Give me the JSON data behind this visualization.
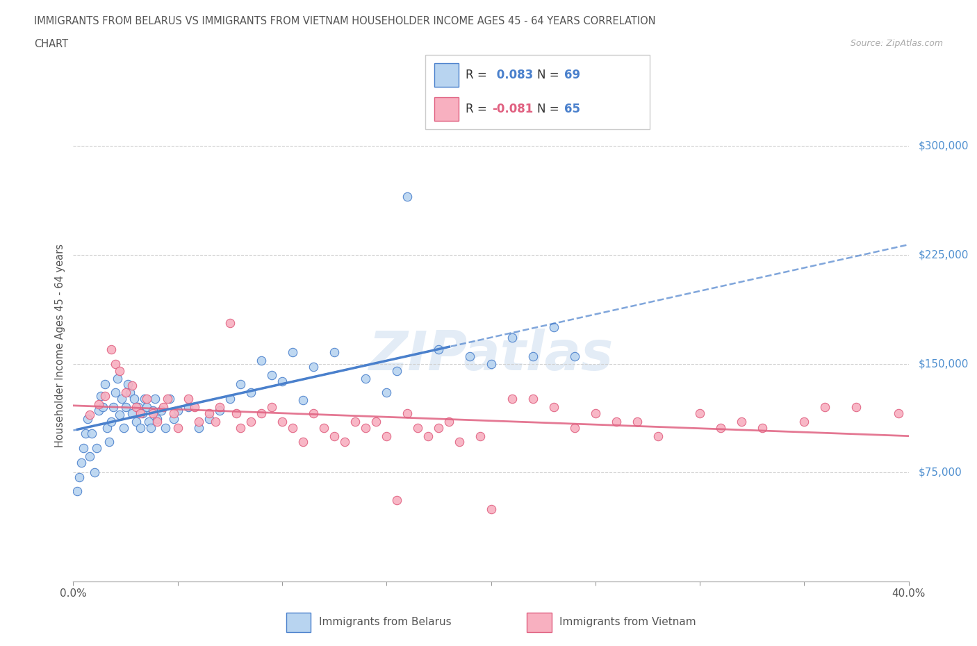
{
  "title_line1": "IMMIGRANTS FROM BELARUS VS IMMIGRANTS FROM VIETNAM HOUSEHOLDER INCOME AGES 45 - 64 YEARS CORRELATION",
  "title_line2": "CHART",
  "source": "Source: ZipAtlas.com",
  "ylabel": "Householder Income Ages 45 - 64 years",
  "xmin": 0.0,
  "xmax": 0.4,
  "ymin": 0,
  "ymax": 325000,
  "yticks": [
    0,
    75000,
    150000,
    225000,
    300000
  ],
  "ytick_labels": [
    "",
    "$75,000",
    "$150,000",
    "$225,000",
    "$300,000"
  ],
  "xticks": [
    0.0,
    0.05,
    0.1,
    0.15,
    0.2,
    0.25,
    0.3,
    0.35,
    0.4
  ],
  "belarus_color": "#b8d4f0",
  "vietnam_color": "#f8b0c0",
  "belarus_line_color": "#4a80cc",
  "vietnam_line_color": "#e06080",
  "r_belarus": 0.083,
  "n_belarus": 69,
  "r_vietnam": -0.081,
  "n_vietnam": 65,
  "belarus_x": [
    0.002,
    0.003,
    0.004,
    0.005,
    0.006,
    0.007,
    0.008,
    0.009,
    0.01,
    0.011,
    0.012,
    0.013,
    0.014,
    0.015,
    0.016,
    0.017,
    0.018,
    0.019,
    0.02,
    0.021,
    0.022,
    0.023,
    0.024,
    0.025,
    0.026,
    0.027,
    0.028,
    0.029,
    0.03,
    0.031,
    0.032,
    0.033,
    0.034,
    0.035,
    0.036,
    0.037,
    0.038,
    0.039,
    0.04,
    0.042,
    0.044,
    0.046,
    0.048,
    0.05,
    0.055,
    0.06,
    0.065,
    0.07,
    0.075,
    0.08,
    0.085,
    0.09,
    0.095,
    0.1,
    0.105,
    0.11,
    0.115,
    0.125,
    0.14,
    0.15,
    0.155,
    0.16,
    0.175,
    0.19,
    0.2,
    0.21,
    0.22,
    0.23,
    0.24
  ],
  "belarus_y": [
    62000,
    72000,
    82000,
    92000,
    102000,
    112000,
    86000,
    102000,
    75000,
    92000,
    118000,
    128000,
    120000,
    136000,
    106000,
    96000,
    110000,
    120000,
    130000,
    140000,
    115000,
    126000,
    106000,
    120000,
    136000,
    130000,
    116000,
    126000,
    110000,
    120000,
    106000,
    116000,
    126000,
    120000,
    110000,
    106000,
    118000,
    126000,
    112000,
    118000,
    106000,
    126000,
    112000,
    118000,
    120000,
    106000,
    112000,
    118000,
    126000,
    136000,
    130000,
    152000,
    142000,
    138000,
    158000,
    125000,
    148000,
    158000,
    140000,
    130000,
    145000,
    265000,
    160000,
    155000,
    150000,
    168000,
    155000,
    175000,
    155000
  ],
  "vietnam_x": [
    0.008,
    0.012,
    0.015,
    0.018,
    0.02,
    0.022,
    0.025,
    0.028,
    0.03,
    0.032,
    0.035,
    0.038,
    0.04,
    0.043,
    0.045,
    0.048,
    0.05,
    0.055,
    0.058,
    0.06,
    0.065,
    0.068,
    0.07,
    0.075,
    0.078,
    0.08,
    0.085,
    0.09,
    0.095,
    0.1,
    0.105,
    0.11,
    0.115,
    0.12,
    0.125,
    0.13,
    0.135,
    0.14,
    0.145,
    0.15,
    0.155,
    0.16,
    0.165,
    0.17,
    0.175,
    0.18,
    0.185,
    0.195,
    0.2,
    0.21,
    0.22,
    0.23,
    0.24,
    0.25,
    0.26,
    0.27,
    0.28,
    0.3,
    0.31,
    0.32,
    0.33,
    0.35,
    0.36,
    0.375,
    0.395
  ],
  "vietnam_y": [
    115000,
    122000,
    128000,
    160000,
    150000,
    145000,
    130000,
    135000,
    120000,
    116000,
    126000,
    116000,
    110000,
    120000,
    126000,
    116000,
    106000,
    126000,
    120000,
    110000,
    116000,
    110000,
    120000,
    178000,
    116000,
    106000,
    110000,
    116000,
    120000,
    110000,
    106000,
    96000,
    116000,
    106000,
    100000,
    96000,
    110000,
    106000,
    110000,
    100000,
    56000,
    116000,
    106000,
    100000,
    106000,
    110000,
    96000,
    100000,
    50000,
    126000,
    126000,
    120000,
    106000,
    116000,
    110000,
    110000,
    100000,
    116000,
    106000,
    110000,
    106000,
    110000,
    120000,
    120000,
    116000
  ]
}
